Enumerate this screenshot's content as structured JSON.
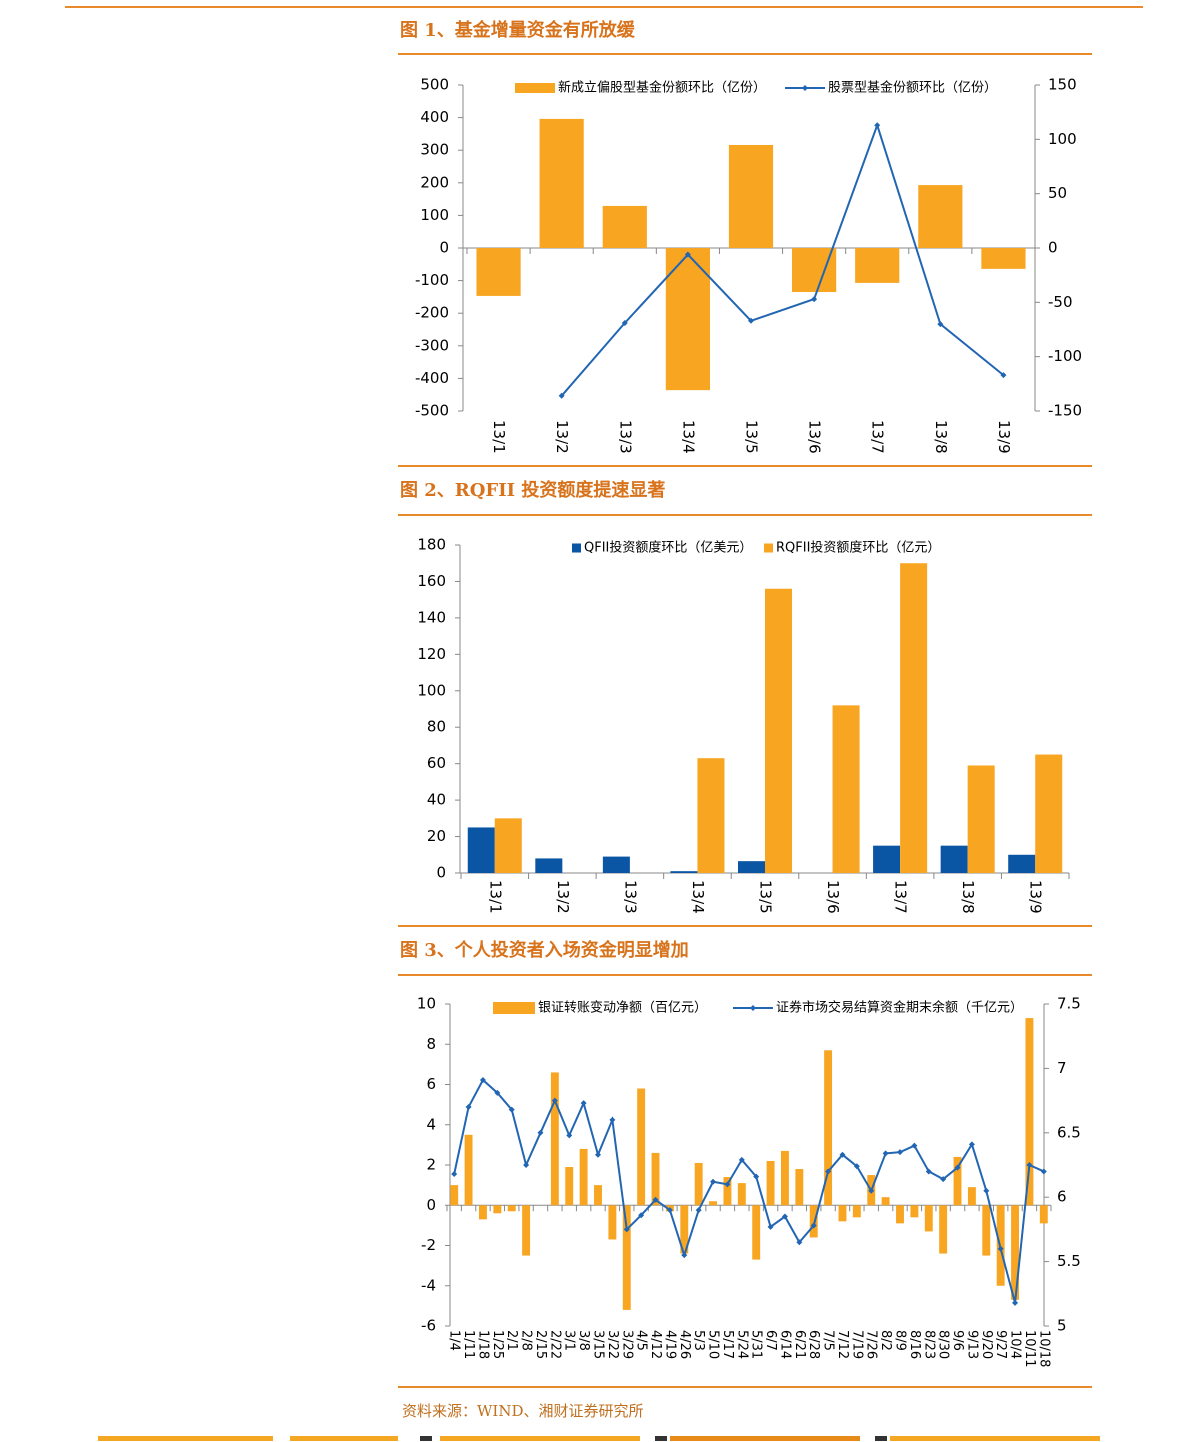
{
  "chart_data": [
    {
      "type": "combo",
      "title": "图 1、基金增量资金有所放缓",
      "categories": [
        "13/1",
        "13/2",
        "13/3",
        "13/4",
        "13/5",
        "13/6",
        "13/7",
        "13/8",
        "13/9"
      ],
      "series": [
        {
          "name": "新成立偏股型基金份额环比（亿份）",
          "type": "bar",
          "color": "#f8a522",
          "values": [
            -147,
            396,
            129,
            -436,
            316,
            -135,
            -107,
            193,
            -64
          ]
        },
        {
          "name": "股票型基金份额环比（亿份）",
          "type": "line",
          "axis": "y2",
          "color": "#2266b3",
          "values": [
            null,
            -136,
            -69,
            -6,
            -67,
            -47,
            113,
            -70,
            -117
          ]
        }
      ],
      "ylim": [
        -500,
        500
      ],
      "yticks": [
        -500,
        -400,
        -300,
        -200,
        -100,
        0,
        100,
        200,
        300,
        400,
        500
      ],
      "y2lim": [
        -150,
        150
      ],
      "y2ticks": [
        -150,
        -100,
        -50,
        0,
        50,
        100,
        150
      ]
    },
    {
      "type": "bar",
      "title": "图 2、RQFII 投资额度提速显著",
      "categories": [
        "13/1",
        "13/2",
        "13/3",
        "13/4",
        "13/5",
        "13/6",
        "13/7",
        "13/8",
        "13/9"
      ],
      "series": [
        {
          "name": "QFII投资额度环比（亿美元）",
          "type": "bar",
          "color": "#0a56a5",
          "values": [
            25,
            8,
            9,
            1,
            6.5,
            0,
            15,
            15,
            10
          ]
        },
        {
          "name": "RQFII投资额度环比（亿元）",
          "type": "bar",
          "color": "#f8a522",
          "values": [
            30,
            0,
            0,
            63,
            156,
            92,
            170,
            59,
            65
          ]
        }
      ],
      "ylim": [
        0,
        180
      ],
      "yticks": [
        0,
        20,
        40,
        60,
        80,
        100,
        120,
        140,
        160,
        180
      ]
    },
    {
      "type": "combo",
      "title": "图 3、个人投资者入场资金明显增加",
      "categories": [
        "1/4",
        "1/11",
        "1/18",
        "1/25",
        "2/1",
        "2/8",
        "2/15",
        "2/22",
        "3/1",
        "3/8",
        "3/15",
        "3/22",
        "3/29",
        "4/5",
        "4/12",
        "4/19",
        "4/26",
        "5/3",
        "5/10",
        "5/17",
        "5/24",
        "5/31",
        "6/7",
        "6/14",
        "6/21",
        "6/28",
        "7/5",
        "7/12",
        "7/19",
        "7/26",
        "8/2",
        "8/9",
        "8/16",
        "8/23",
        "8/30",
        "9/6",
        "9/13",
        "9/20",
        "9/27",
        "10/4",
        "10/11",
        "10/18"
      ],
      "series": [
        {
          "name": "银证转账变动净额（百亿元）",
          "type": "bar",
          "color": "#f8a522",
          "values": [
            1.0,
            3.5,
            -0.7,
            -0.4,
            -0.3,
            -2.5,
            0,
            6.6,
            1.9,
            2.8,
            1.0,
            -1.7,
            -5.2,
            5.8,
            2.6,
            -0.3,
            -2.4,
            2.1,
            0.2,
            1.4,
            1.1,
            -2.7,
            2.2,
            2.7,
            1.8,
            -1.6,
            7.7,
            -0.8,
            -0.6,
            1.5,
            0.4,
            -0.9,
            -0.6,
            -1.3,
            -2.4,
            2.4,
            0.9,
            -2.5,
            -4.0,
            -4.7,
            9.3,
            -0.9
          ]
        },
        {
          "name": "证券市场交易结算资金期末余额（千亿元）",
          "type": "line",
          "axis": "y2",
          "color": "#2266b3",
          "values": [
            6.18,
            6.7,
            6.91,
            6.81,
            6.68,
            6.25,
            6.5,
            6.75,
            6.48,
            6.73,
            6.33,
            6.6,
            5.75,
            5.86,
            5.98,
            5.9,
            5.55,
            5.9,
            6.12,
            6.1,
            6.29,
            6.16,
            5.77,
            5.85,
            5.65,
            5.78,
            6.2,
            6.33,
            6.24,
            6.05,
            6.34,
            6.35,
            6.4,
            6.2,
            6.14,
            6.23,
            6.41,
            6.05,
            5.6,
            5.18,
            6.25,
            6.2
          ]
        }
      ],
      "ylim": [
        -6,
        10
      ],
      "yticks": [
        -6,
        -4,
        -2,
        0,
        2,
        4,
        6,
        8,
        10
      ],
      "y2lim": [
        5,
        7.5
      ],
      "y2ticks": [
        5,
        5.5,
        6,
        6.5,
        7,
        7.5
      ]
    }
  ],
  "source": "资料来源：WIND、湘财证券研究所"
}
